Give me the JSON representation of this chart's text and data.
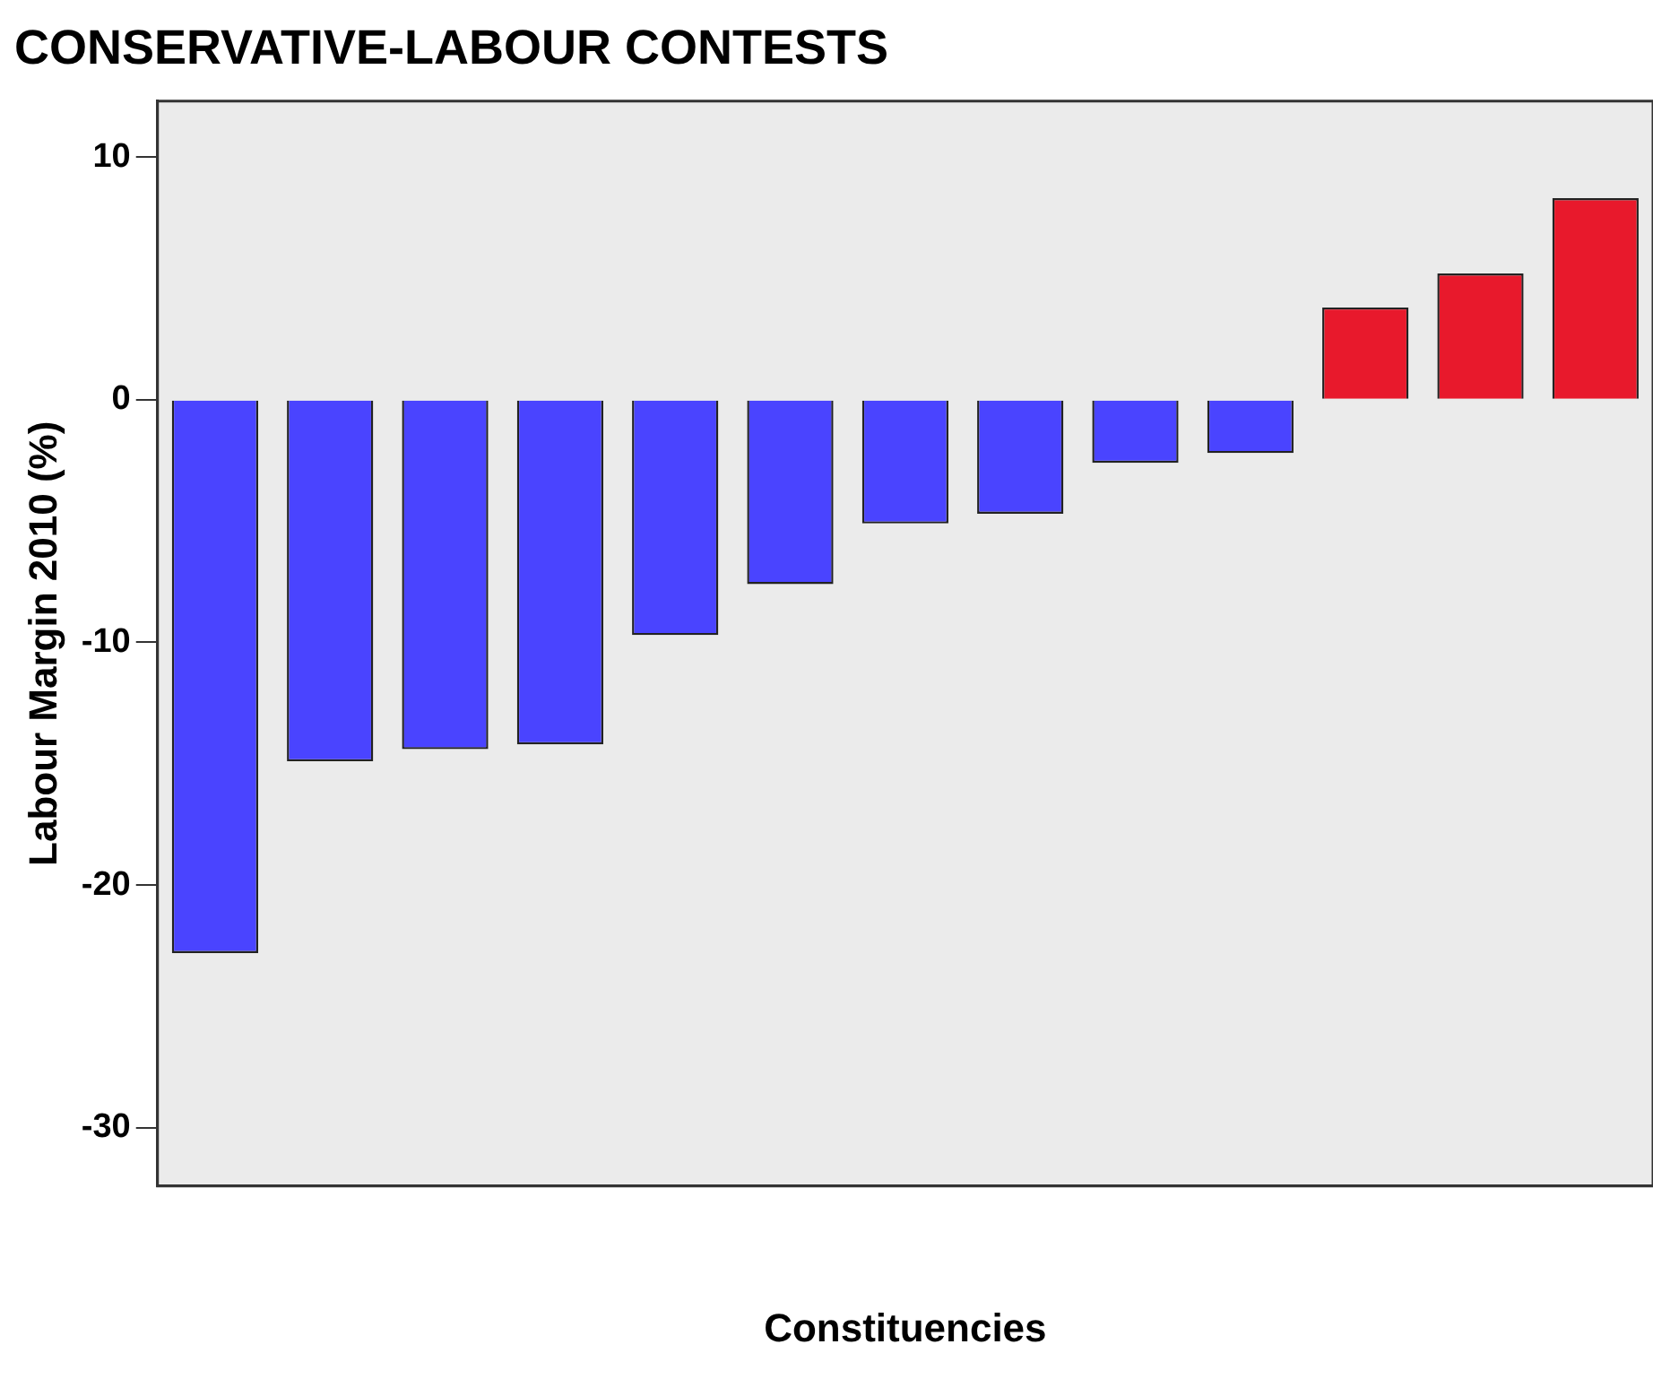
{
  "chart_data": {
    "type": "bar",
    "title": "CONSERVATIVE-LABOUR CONTESTS",
    "xlabel": "Constituencies",
    "ylabel": "Labour Margin 2010 (%)",
    "categories": [
      null,
      null,
      null,
      null,
      null,
      null,
      null,
      null,
      null,
      null,
      null,
      null,
      null
    ],
    "values": [
      -22.8,
      -14.9,
      -14.4,
      -14.2,
      -9.7,
      -7.6,
      -5.1,
      -4.7,
      -2.6,
      -2.2,
      3.8,
      5.2,
      8.3
    ],
    "colors": [
      "#4a44ff",
      "#4a44ff",
      "#4a44ff",
      "#4a44ff",
      "#4a44ff",
      "#4a44ff",
      "#4a44ff",
      "#4a44ff",
      "#4a44ff",
      "#4a44ff",
      "#e8192c",
      "#e8192c",
      "#e8192c"
    ],
    "ylim": [
      -32.4,
      12.3
    ],
    "yticks": [
      -30,
      -20,
      -10,
      0,
      10
    ],
    "grid": false,
    "legend": false
  }
}
